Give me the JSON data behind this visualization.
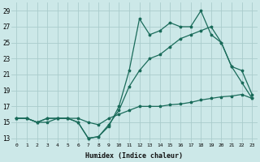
{
  "xlabel": "Humidex (Indice chaleur)",
  "bg_color": "#cce8e8",
  "grid_color": "#aacccc",
  "line_color": "#1a6b5a",
  "xlim": [
    -0.5,
    23.5
  ],
  "ylim": [
    12.5,
    30.0
  ],
  "yticks": [
    13,
    15,
    17,
    19,
    21,
    23,
    25,
    27,
    29
  ],
  "xticks": [
    0,
    1,
    2,
    3,
    4,
    5,
    6,
    7,
    8,
    9,
    10,
    11,
    12,
    13,
    14,
    15,
    16,
    17,
    18,
    19,
    20,
    21,
    22,
    23
  ],
  "line_noisy_x": [
    0,
    1,
    2,
    3,
    4,
    5,
    6,
    7,
    8,
    9,
    10,
    11,
    12,
    13,
    14,
    15,
    16,
    17,
    18,
    19,
    20,
    21,
    22,
    23
  ],
  "line_noisy_y": [
    15.5,
    15.5,
    15.0,
    15.5,
    15.5,
    15.5,
    15.0,
    13.0,
    13.2,
    14.5,
    17.0,
    21.5,
    28.0,
    26.0,
    26.5,
    27.5,
    27.0,
    27.0,
    29.0,
    26.0,
    25.0,
    22.0,
    20.0,
    18.0
  ],
  "line_mid_x": [
    0,
    1,
    2,
    3,
    4,
    5,
    6,
    7,
    8,
    9,
    10,
    11,
    12,
    13,
    14,
    15,
    16,
    17,
    18,
    19,
    20,
    21,
    22,
    23
  ],
  "line_mid_y": [
    15.5,
    15.5,
    15.0,
    15.0,
    15.5,
    15.5,
    15.0,
    13.0,
    13.2,
    14.7,
    16.5,
    19.5,
    21.5,
    23.0,
    23.5,
    24.5,
    25.5,
    26.0,
    26.5,
    27.0,
    25.0,
    22.0,
    21.5,
    18.5
  ],
  "line_flat_x": [
    0,
    1,
    2,
    3,
    4,
    5,
    6,
    7,
    8,
    9,
    10,
    11,
    12,
    13,
    14,
    15,
    16,
    17,
    18,
    19,
    20,
    21,
    22,
    23
  ],
  "line_flat_y": [
    15.5,
    15.5,
    15.0,
    15.5,
    15.5,
    15.5,
    15.5,
    15.0,
    14.7,
    15.5,
    16.0,
    16.5,
    17.0,
    17.0,
    17.0,
    17.2,
    17.3,
    17.5,
    17.8,
    18.0,
    18.2,
    18.3,
    18.5,
    18.0
  ]
}
